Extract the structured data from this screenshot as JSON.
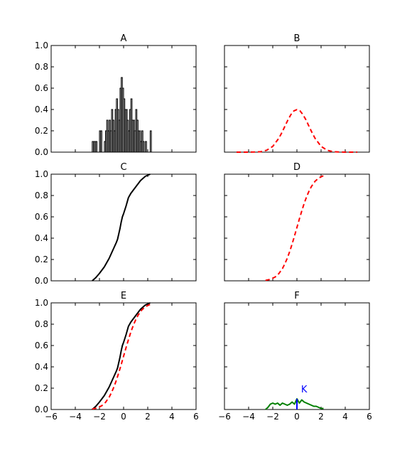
{
  "chart_data": [
    {
      "panel": "A",
      "title": "A",
      "type": "bar",
      "xlim": [
        -6,
        6
      ],
      "ylim": [
        0,
        1.0
      ],
      "yticks": [
        "0.0",
        "0.2",
        "0.4",
        "0.6",
        "0.8",
        "1.0"
      ],
      "bar_color": "#c0c0c0",
      "edge_color": "#000000",
      "bin_width": 0.1,
      "bins_x": [
        -2.6,
        -2.5,
        -2.4,
        -2.3,
        -2.0,
        -1.9,
        -1.6,
        -1.5,
        -1.4,
        -1.3,
        -1.2,
        -1.1,
        -1.0,
        -0.9,
        -0.8,
        -0.7,
        -0.6,
        -0.5,
        -0.4,
        -0.3,
        -0.2,
        -0.1,
        0.0,
        0.1,
        0.2,
        0.3,
        0.4,
        0.5,
        0.6,
        0.7,
        0.8,
        0.9,
        1.0,
        1.1,
        1.2,
        1.3,
        1.4,
        1.5,
        1.6,
        1.8,
        2.2
      ],
      "values": [
        0.1,
        0.1,
        0.1,
        0.1,
        0.2,
        0.2,
        0.1,
        0.2,
        0.3,
        0.2,
        0.3,
        0.2,
        0.4,
        0.3,
        0.2,
        0.4,
        0.5,
        0.4,
        0.3,
        0.6,
        0.7,
        0.6,
        0.5,
        0.4,
        0.4,
        0.3,
        0.2,
        0.4,
        0.5,
        0.3,
        0.3,
        0.2,
        0.4,
        0.3,
        0.2,
        0.2,
        0.1,
        0.2,
        0.1,
        0.1,
        0.2
      ]
    },
    {
      "panel": "B",
      "title": "B",
      "type": "line",
      "xlim": [
        -6,
        6
      ],
      "ylim": [
        0,
        1.0
      ],
      "series": [
        {
          "style": "dashed",
          "color": "#ff0000",
          "x": [
            -5.0,
            -4.5,
            -4.0,
            -3.5,
            -3.0,
            -2.5,
            -2.0,
            -1.5,
            -1.25,
            -1.0,
            -0.75,
            -0.5,
            -0.25,
            0.0,
            0.25,
            0.5,
            0.75,
            1.0,
            1.25,
            1.5,
            2.0,
            2.5,
            3.0,
            3.5,
            4.0,
            4.5,
            5.0
          ],
          "y": [
            0.0,
            0.0,
            0.0,
            0.001,
            0.004,
            0.018,
            0.054,
            0.13,
            0.183,
            0.242,
            0.301,
            0.352,
            0.387,
            0.399,
            0.387,
            0.352,
            0.301,
            0.242,
            0.183,
            0.13,
            0.054,
            0.018,
            0.004,
            0.001,
            0.0,
            0.0,
            0.0
          ]
        }
      ]
    },
    {
      "panel": "C",
      "title": "C",
      "type": "line",
      "xlim": [
        -6,
        6
      ],
      "ylim": [
        0,
        1.0
      ],
      "yticks": [
        "0.0",
        "0.2",
        "0.4",
        "0.6",
        "0.8",
        "1.0"
      ],
      "series": [
        {
          "style": "solid",
          "color": "#000000",
          "x": [
            -2.6,
            -2.3,
            -2.0,
            -1.8,
            -1.6,
            -1.4,
            -1.2,
            -1.0,
            -0.8,
            -0.6,
            -0.5,
            -0.4,
            -0.3,
            -0.2,
            -0.1,
            0.0,
            0.2,
            0.4,
            0.6,
            0.8,
            1.0,
            1.2,
            1.4,
            1.6,
            1.8,
            2.0,
            2.2
          ],
          "y": [
            0.0,
            0.03,
            0.07,
            0.1,
            0.13,
            0.17,
            0.21,
            0.26,
            0.31,
            0.36,
            0.39,
            0.44,
            0.49,
            0.55,
            0.6,
            0.63,
            0.7,
            0.78,
            0.82,
            0.85,
            0.88,
            0.91,
            0.94,
            0.96,
            0.98,
            0.99,
            1.0
          ]
        }
      ]
    },
    {
      "panel": "D",
      "title": "D",
      "type": "line",
      "xlim": [
        -6,
        6
      ],
      "ylim": [
        0,
        1.0
      ],
      "series": [
        {
          "style": "dashed",
          "color": "#ff0000",
          "x": [
            -2.6,
            -2.2,
            -1.8,
            -1.5,
            -1.2,
            -1.0,
            -0.8,
            -0.6,
            -0.4,
            -0.2,
            0.0,
            0.2,
            0.4,
            0.6,
            0.8,
            1.0,
            1.2,
            1.5,
            1.8,
            2.2
          ],
          "y": [
            0.005,
            0.014,
            0.036,
            0.067,
            0.115,
            0.159,
            0.212,
            0.274,
            0.345,
            0.421,
            0.5,
            0.579,
            0.655,
            0.726,
            0.788,
            0.841,
            0.885,
            0.933,
            0.964,
            0.986
          ]
        }
      ]
    },
    {
      "panel": "E",
      "title": "E",
      "type": "line",
      "xlim": [
        -6,
        6
      ],
      "ylim": [
        0,
        1.0
      ],
      "xticks": [
        "−6",
        "−4",
        "−2",
        "0",
        "2",
        "4",
        "6"
      ],
      "yticks": [
        "0.0",
        "0.2",
        "0.4",
        "0.6",
        "0.8",
        "1.0"
      ],
      "series": [
        {
          "style": "solid",
          "color": "#000000",
          "x": [
            -2.6,
            -2.3,
            -2.0,
            -1.8,
            -1.6,
            -1.4,
            -1.2,
            -1.0,
            -0.8,
            -0.6,
            -0.5,
            -0.4,
            -0.3,
            -0.2,
            -0.1,
            0.0,
            0.2,
            0.4,
            0.6,
            0.8,
            1.0,
            1.2,
            1.4,
            1.6,
            1.8,
            2.0,
            2.2
          ],
          "y": [
            0.0,
            0.03,
            0.07,
            0.1,
            0.13,
            0.17,
            0.21,
            0.26,
            0.31,
            0.36,
            0.39,
            0.44,
            0.49,
            0.55,
            0.6,
            0.63,
            0.7,
            0.78,
            0.82,
            0.85,
            0.88,
            0.91,
            0.94,
            0.96,
            0.98,
            0.99,
            1.0
          ]
        },
        {
          "style": "dashed",
          "color": "#ff0000",
          "x": [
            -2.6,
            -2.2,
            -1.8,
            -1.5,
            -1.2,
            -1.0,
            -0.8,
            -0.6,
            -0.4,
            -0.2,
            0.0,
            0.2,
            0.4,
            0.6,
            0.8,
            1.0,
            1.2,
            1.5,
            1.8,
            2.2
          ],
          "y": [
            0.005,
            0.014,
            0.036,
            0.067,
            0.115,
            0.159,
            0.212,
            0.274,
            0.345,
            0.421,
            0.5,
            0.579,
            0.655,
            0.726,
            0.788,
            0.841,
            0.885,
            0.933,
            0.964,
            0.986
          ]
        }
      ]
    },
    {
      "panel": "F",
      "title": "F",
      "type": "line",
      "xlim": [
        -6,
        6
      ],
      "ylim": [
        0,
        1.0
      ],
      "xticks": [
        "−6",
        "−4",
        "−2",
        "0",
        "2",
        "4",
        "6"
      ],
      "annotation": {
        "text": "K",
        "color": "#0000ff"
      },
      "series": [
        {
          "style": "solid",
          "color": "#007f00",
          "x": [
            -2.6,
            -2.4,
            -2.2,
            -2.0,
            -1.8,
            -1.6,
            -1.4,
            -1.2,
            -1.0,
            -0.8,
            -0.6,
            -0.4,
            -0.2,
            0.0,
            0.2,
            0.4,
            0.6,
            0.8,
            1.0,
            1.2,
            1.4,
            1.6,
            1.8,
            2.0,
            2.2
          ],
          "y": [
            0.0,
            0.02,
            0.05,
            0.06,
            0.05,
            0.06,
            0.04,
            0.06,
            0.05,
            0.04,
            0.05,
            0.07,
            0.05,
            0.1,
            0.06,
            0.09,
            0.07,
            0.06,
            0.05,
            0.04,
            0.03,
            0.03,
            0.02,
            0.01,
            0.01
          ]
        },
        {
          "style": "solid",
          "color": "#0000ff",
          "name": "",
          "x": [
            0.0,
            0.0
          ],
          "y": [
            0.0,
            0.1
          ]
        }
      ]
    }
  ]
}
